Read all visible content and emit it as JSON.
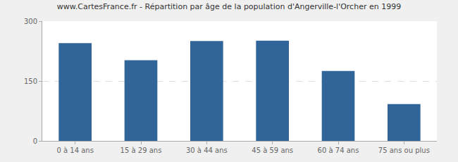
{
  "chart_data": {
    "type": "bar",
    "title": "www.CartesFrance.fr - Répartition par âge de la population d'Angerville-l'Orcher en 1999",
    "categories": [
      "0 à 14 ans",
      "15 à 29 ans",
      "30 à 44 ans",
      "45 à 59 ans",
      "60 à 74 ans",
      "75 ans ou plus"
    ],
    "values": [
      245,
      202,
      250,
      251,
      175,
      92
    ],
    "color": "#31659a",
    "ylim": [
      0,
      300
    ],
    "yticks": [
      0,
      150,
      300
    ],
    "grid": true
  }
}
